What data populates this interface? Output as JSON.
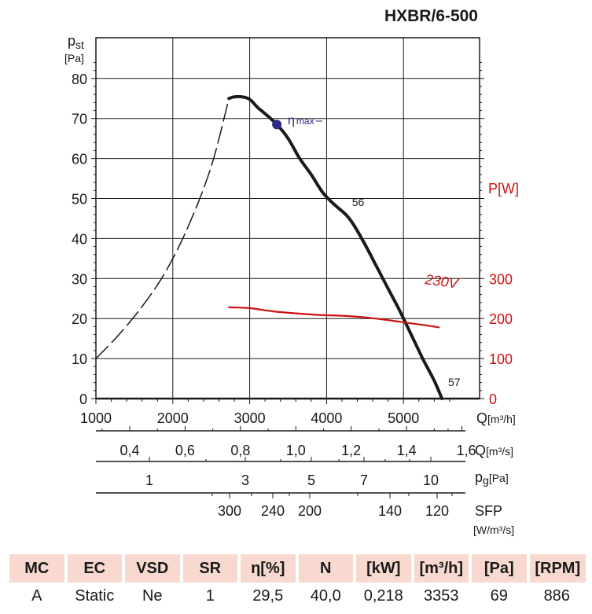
{
  "title": "HXBR/6-500",
  "chart_data": {
    "type": "line",
    "title": "HXBR/6-500",
    "xlabel": "Q [m³/h]",
    "xlim": [
      1000,
      5600
    ],
    "x_ticks": [
      1000,
      2000,
      3000,
      4000,
      5000
    ],
    "y_left": {
      "label_main": "p",
      "label_sub": "st",
      "unit": "[Pa]",
      "lim": [
        0,
        85
      ],
      "ticks": [
        0,
        10,
        20,
        30,
        40,
        50,
        60,
        70,
        80
      ]
    },
    "y_right": {
      "label": "P",
      "unit": "[W]",
      "color": "#cc1111",
      "ticks": [
        0,
        100,
        200,
        300
      ],
      "scale_per_pa": 10
    },
    "series": [
      {
        "name": "pressure",
        "axis": "left",
        "style": "solid",
        "x": [
          2730,
          2800,
          2900,
          3000,
          3100,
          3200,
          3353,
          3500,
          3650,
          3800,
          3950,
          4100,
          4250,
          4350,
          4500,
          4650,
          4800,
          4950,
          5100,
          5250,
          5400,
          5500
        ],
        "y": [
          75,
          75.4,
          75.4,
          74.8,
          72.8,
          71.2,
          68.5,
          65,
          60,
          56,
          51.5,
          48.5,
          46,
          43.5,
          38.5,
          33,
          27.5,
          22,
          16,
          10,
          4.5,
          0
        ]
      },
      {
        "name": "pressure-extrapolated",
        "axis": "left",
        "style": "dashed",
        "x": [
          1000,
          1300,
          1600,
          1900,
          2200,
          2500,
          2730
        ],
        "y": [
          10,
          16,
          23,
          31.5,
          43,
          58,
          75
        ]
      },
      {
        "name": "230V",
        "axis": "right",
        "style": "solid",
        "color": "#cc1111",
        "x": [
          2730,
          3000,
          3300,
          3600,
          3900,
          4200,
          4500,
          4800,
          5100,
          5300,
          5460
        ],
        "y": [
          228,
          226,
          218,
          213,
          209,
          207,
          203,
          196,
          188,
          183,
          178
        ]
      }
    ],
    "points": [
      {
        "name": "ηmax",
        "x": 3353,
        "y": 68.5
      }
    ],
    "annotations": [
      {
        "text": "56",
        "x": 4300,
        "y": 47
      },
      {
        "text": "57",
        "x": 5550,
        "y": 2
      }
    ],
    "secondary_scales": [
      {
        "unit": "Q[m³/s]",
        "values": [
          0.4,
          0.6,
          0.8,
          1.0,
          1.2,
          1.4,
          1.6
        ],
        "labels": [
          "0,4",
          "0,6",
          "0,8",
          "1,0",
          "1,2",
          "1,4",
          "1,6"
        ]
      },
      {
        "unit": "pg[Pa]",
        "values": [
          1,
          3,
          5,
          7,
          10
        ],
        "labels": [
          "1",
          "3",
          "5",
          "7",
          "10"
        ]
      },
      {
        "unit": "SFP [W/m³/s]",
        "values": [
          300,
          240,
          200,
          140,
          120
        ],
        "labels": [
          "300",
          "240",
          "200",
          "140",
          "120"
        ]
      }
    ]
  },
  "labels": {
    "q_unit_main": "Q",
    "q_unit_sub": "[m³/h]",
    "qs_main": "Q",
    "qs_unit": "[m³/s]",
    "pg_main": "p",
    "pg_sub": "g",
    "pg_unit": "[Pa]",
    "sfp_main": "SFP",
    "sfp_unit": "[W/m³/s]",
    "eta_symbol": "η",
    "eta_sub": "max",
    "curve_label": "230V",
    "pst_main": "p",
    "pst_sub": "st",
    "pst_unit": "[Pa]",
    "power_main": "P",
    "power_unit": "[W]"
  },
  "specs_table": {
    "headers": [
      "MC",
      "EC",
      "VSD",
      "SR",
      "η[%]",
      "N",
      "[kW]",
      "[m³/h]",
      "[Pa]",
      "[RPM]"
    ],
    "values": [
      "A",
      "Static",
      "Ne",
      "1",
      "29,5",
      "40,0",
      "0,218",
      "3353",
      "69",
      "886"
    ]
  }
}
